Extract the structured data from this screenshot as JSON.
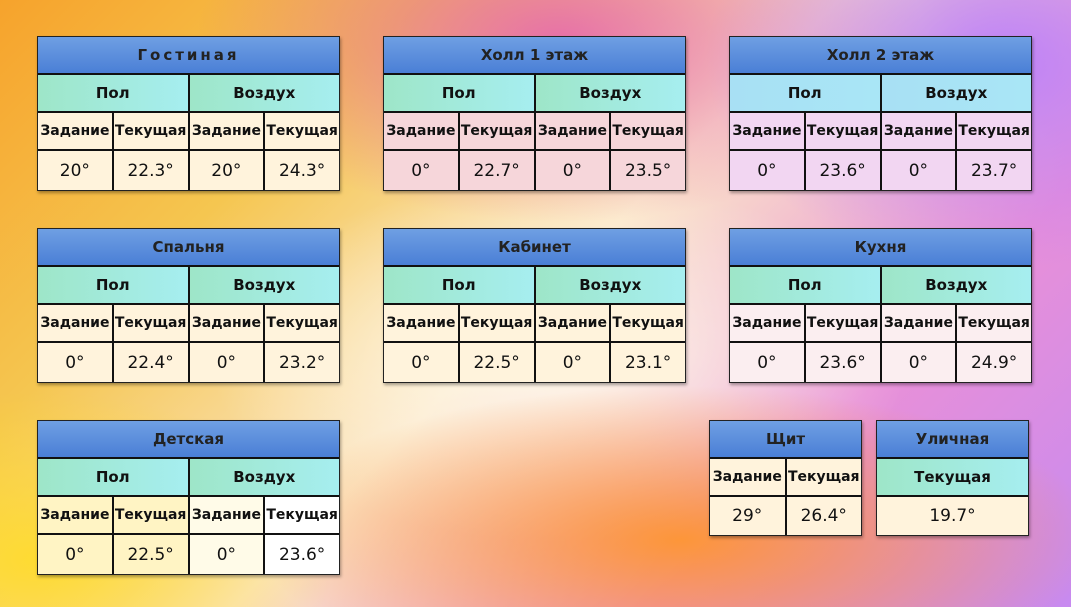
{
  "labels": {
    "floor": "Пол",
    "air": "Воздух",
    "setpoint": "Задание",
    "current": "Текущая"
  },
  "rooms": [
    {
      "name": "Гостиная",
      "floor_set": "20°",
      "floor_cur": "22.3°",
      "air_set": "20°",
      "air_cur": "24.3°"
    },
    {
      "name": "Холл 1 этаж",
      "floor_set": "0°",
      "floor_cur": "22.7°",
      "air_set": "0°",
      "air_cur": "23.5°"
    },
    {
      "name": "Холл 2 этаж",
      "floor_set": "0°",
      "floor_cur": "23.6°",
      "air_set": "0°",
      "air_cur": "23.7°"
    },
    {
      "name": "Спальня",
      "floor_set": "0°",
      "floor_cur": "22.4°",
      "air_set": "0°",
      "air_cur": "23.2°"
    },
    {
      "name": "Кабинет",
      "floor_set": "0°",
      "floor_cur": "22.5°",
      "air_set": "0°",
      "air_cur": "23.1°"
    },
    {
      "name": "Кухня",
      "floor_set": "0°",
      "floor_cur": "23.6°",
      "air_set": "0°",
      "air_cur": "24.9°"
    },
    {
      "name": "Детская",
      "floor_set": "0°",
      "floor_cur": "22.5°",
      "air_set": "0°",
      "air_cur": "23.6°"
    }
  ],
  "panel_board": {
    "name": "Щит",
    "set": "29°",
    "cur": "26.4°"
  },
  "outdoor": {
    "name": "Уличная",
    "cur_label": "Текущая",
    "cur": "19.7°"
  }
}
